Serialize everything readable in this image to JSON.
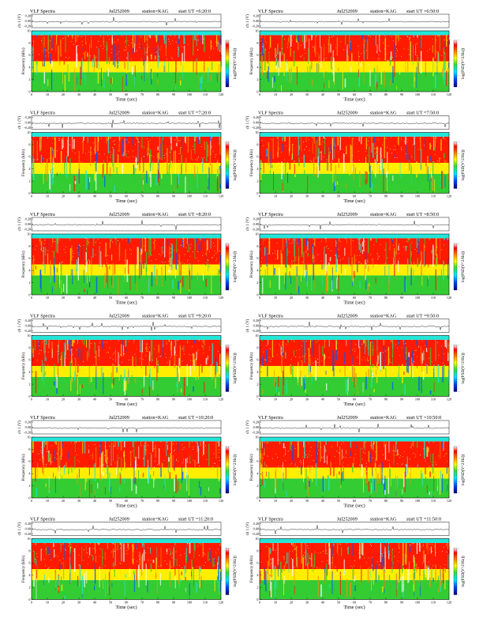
{
  "figure": {
    "panels": [
      {
        "col": 0,
        "row": 0,
        "title": "VLF Spectra",
        "date": "Jul252009",
        "station": "station=KAG",
        "start": "start UT =6:20:0",
        "ylabel": "Frequency (kHz)"
      },
      {
        "col": 1,
        "row": 0,
        "title": "VLF Spectra",
        "date": "Jul252009",
        "station": "station=KAG",
        "start": "start UT =6:50:0",
        "ylabel": "Frequency (kHz)"
      },
      {
        "col": 0,
        "row": 1,
        "title": "VLF Spectra",
        "date": "Jul252009",
        "station": "station=KAG",
        "start": "start UT =7:20:0",
        "ylabel": "Frequency (kHz)"
      },
      {
        "col": 1,
        "row": 1,
        "title": "VLF Spectra",
        "date": "Jul252009",
        "station": "station=KAG",
        "start": "start UT =7:50:0",
        "ylabel": "Frequency (kHz)"
      },
      {
        "col": 0,
        "row": 2,
        "title": "VLF Spectra",
        "date": "Jul252009",
        "station": "station=KAG",
        "start": "start UT =8:20:0",
        "ylabel": "Frequency (kHz)"
      },
      {
        "col": 1,
        "row": 2,
        "title": "VLF Spectra",
        "date": "Jul252009",
        "station": "station=KAG",
        "start": "start UT =8:50:0",
        "ylabel": "Frequency (kHz)"
      },
      {
        "col": 0,
        "row": 3,
        "title": "VLF Spectra",
        "date": "Jul252009",
        "station": "station=KAG",
        "start": "start UT =9:20:0",
        "ylabel": "Frequency (kHz)"
      },
      {
        "col": 1,
        "row": 3,
        "title": "VLF Spectra",
        "date": "Jul252009",
        "station": "station=KAG",
        "start": "start UT =9:50:0",
        "ylabel": "Frequency (kHz)"
      },
      {
        "col": 0,
        "row": 4,
        "title": "VLF Spectra",
        "date": "Jul252009",
        "station": "station=KAG",
        "start": "start UT =10:20:0",
        "ylabel": "Frequency (kHz)"
      },
      {
        "col": 1,
        "row": 4,
        "title": "VLF Spectra",
        "date": "Jul252009",
        "station": "station=KAG",
        "start": "start UT =10:50:0",
        "ylabel": "Frequency (kHz)"
      },
      {
        "col": 0,
        "row": 5,
        "title": "VLF Spectra",
        "date": "Jul252009",
        "station": "station=KAG",
        "start": "start UT =11:20:0",
        "ylabel": "Frequency (kHz)"
      },
      {
        "col": 1,
        "row": 5,
        "title": "VLF Spectra",
        "date": "Jul252009",
        "station": "station=KAG",
        "start": "start UT =11:50:0",
        "ylabel": "Frequency (kHz)"
      }
    ]
  },
  "chart_data": {
    "type": "heatmap",
    "description_kind": "spectrogram grid, 2 columns x 6 rows",
    "xlabel": "Time (sec)",
    "xlim": [
      0,
      120
    ],
    "xticks": [
      0,
      10,
      20,
      30,
      40,
      50,
      60,
      70,
      80,
      90,
      100,
      110,
      120
    ],
    "ylabel": "Frequency (kHz)",
    "ylim": [
      0,
      10
    ],
    "yticks": [
      0,
      2,
      4,
      6,
      8,
      10
    ],
    "waveform": {
      "ylabel": "ch 1 (V)",
      "yticks": [
        "0.20",
        "0.00",
        "-0.20"
      ],
      "ylim": [
        -0.2,
        0.2
      ]
    },
    "colorbar": {
      "label": "log(PSD(V^2/Hz))",
      "colors_low_to_high": [
        "#000080",
        "#0044ff",
        "#00e5ff",
        "#33dd33",
        "#ffff00",
        "#ff7f00",
        "#ff0000",
        "#ffffff"
      ],
      "ticks": [
        "-",
        "-",
        "-",
        "-",
        "-"
      ]
    },
    "bands_khz": [
      {
        "from": 0,
        "to": 3.2,
        "level": "green/cyan"
      },
      {
        "from": 3.2,
        "to": 5.0,
        "level": "yellow"
      },
      {
        "from": 5.0,
        "to": 9.3,
        "level": "red"
      },
      {
        "from": 9.3,
        "to": 10,
        "level": "cyan"
      }
    ]
  },
  "colors": {
    "red": "#ff1a00",
    "orange": "#ff8c00",
    "yellow": "#ffee00",
    "green": "#33cc33",
    "cyan": "#22e6d8",
    "blue": "#0055ff",
    "navy": "#000090",
    "frame": "#111111"
  }
}
